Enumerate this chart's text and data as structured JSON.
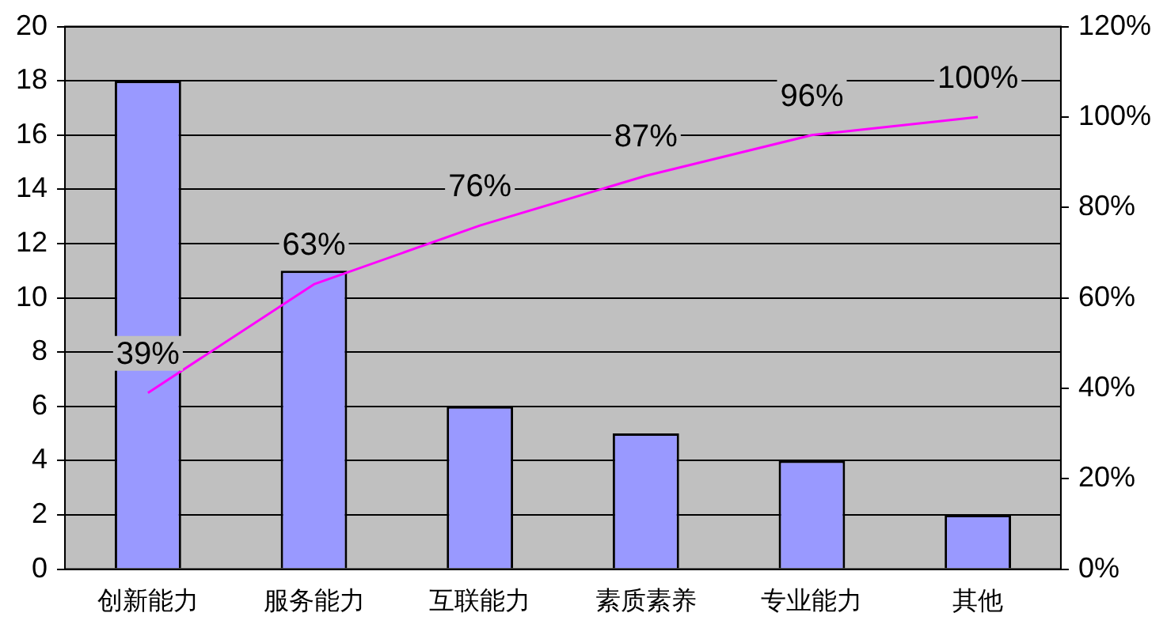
{
  "chart_data": {
    "type": "bar",
    "categories": [
      "创新能力",
      "服务能力",
      "互联能力",
      "素质素养",
      "专业能力",
      "其他"
    ],
    "series": [
      {
        "color": "#9999ff",
        "values": [
          18,
          11,
          6,
          5,
          4,
          2
        ]
      },
      {
        "type": "line",
        "axis": "y2",
        "color": "#ff00ff",
        "values": [
          39,
          63,
          76,
          87,
          96,
          100
        ],
        "value_labels": [
          "39%",
          "63%",
          "76%",
          "87%",
          "96%",
          "100%"
        ]
      }
    ],
    "ylim": [
      0,
      20
    ],
    "yticks": [
      0,
      2,
      4,
      6,
      8,
      10,
      12,
      14,
      16,
      18,
      20
    ],
    "y2lim": [
      0,
      120
    ],
    "y2ticks": [
      {
        "value": 0,
        "label": "0%"
      },
      {
        "value": 20,
        "label": "20%"
      },
      {
        "value": 40,
        "label": "40%"
      },
      {
        "value": 60,
        "label": "60%"
      },
      {
        "value": 80,
        "label": "80%"
      },
      {
        "value": 100,
        "label": "100%"
      },
      {
        "value": 120,
        "label": "120%"
      }
    ],
    "grid": "y",
    "legend": false,
    "marker": "none",
    "line_style": "solid"
  }
}
